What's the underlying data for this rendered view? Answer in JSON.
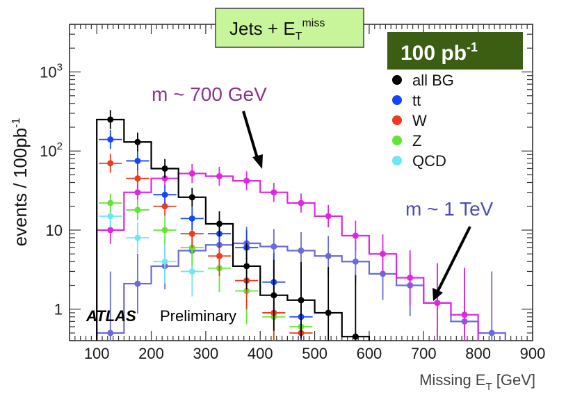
{
  "chart_data": {
    "type": "step-histogram",
    "title": "Jets + E_T^miss",
    "title_main": "Jets + E",
    "title_sub": "T",
    "title_sup": "miss",
    "luminosity_label": "100 pb",
    "luminosity_sup": "-1",
    "xlabel_main": "Missing E",
    "xlabel_sub": "T",
    "xlabel_unit": " [GeV]",
    "ylabel_main": "events / 100pb",
    "ylabel_sup": "-1",
    "xlim": [
      50,
      900
    ],
    "ylim": [
      0.4,
      4000
    ],
    "yscale": "log",
    "x_ticks": [
      100,
      200,
      300,
      400,
      500,
      600,
      700,
      800,
      900
    ],
    "x_tick_labels": [
      "100",
      "200",
      "300",
      "400",
      "500",
      "600",
      "700",
      "800",
      "900"
    ],
    "y_ticks": [
      {
        "value": 1,
        "base": "1",
        "exp": ""
      },
      {
        "value": 10,
        "base": "10",
        "exp": ""
      },
      {
        "value": 100,
        "base": "10",
        "exp": "2"
      },
      {
        "value": 1000,
        "base": "10",
        "exp": "3"
      }
    ],
    "bin_edges": [
      100,
      150,
      200,
      250,
      300,
      350,
      400,
      450,
      500,
      550,
      600,
      650,
      700,
      750,
      800,
      850
    ],
    "series": [
      {
        "name": "all BG",
        "color": "#000000",
        "kind": "hist",
        "values": [
          250,
          130,
          60,
          26,
          12,
          3.5,
          1.5,
          1.3,
          0.9,
          0.45,
          null,
          null,
          null,
          null,
          null
        ]
      },
      {
        "name": "tt",
        "color": "#1546ff",
        "kind": "points",
        "values": [
          140,
          75,
          28,
          14,
          9,
          6,
          2.2,
          0.8,
          null,
          null,
          null,
          null,
          null,
          null,
          null
        ]
      },
      {
        "name": "W",
        "color": "#ee3a1d",
        "kind": "points",
        "values": [
          70,
          45,
          20,
          9,
          4.7,
          2.3,
          0.9,
          0.5,
          null,
          null,
          null,
          null,
          null,
          null,
          null
        ]
      },
      {
        "name": "Z",
        "color": "#62e634",
        "kind": "points",
        "values": [
          22,
          18,
          10,
          6,
          3.3,
          1.7,
          0.8,
          0.6,
          null,
          null,
          null,
          null,
          null,
          null,
          null
        ]
      },
      {
        "name": "QCD",
        "color": "#6fe6f5",
        "kind": "points",
        "values": [
          15,
          8,
          4,
          3,
          null,
          null,
          null,
          null,
          null,
          null,
          null,
          null,
          null,
          null,
          null
        ]
      },
      {
        "name": "m ~ 700 GeV",
        "color": "#e026e0",
        "kind": "signal",
        "values": [
          10,
          30,
          45,
          52,
          48,
          42,
          30,
          22,
          15,
          8.5,
          5,
          2.5,
          1.2,
          0.85,
          null
        ]
      },
      {
        "name": "m ~ 1 TeV",
        "color": "#6a6ad8",
        "kind": "signal",
        "values": [
          0.5,
          2.1,
          3.5,
          5.5,
          6.5,
          6.8,
          6.2,
          5.5,
          4.7,
          4,
          2.8,
          2,
          1.2,
          0.7,
          0.5
        ]
      }
    ],
    "legend": [
      {
        "label": "all BG",
        "color": "#000000"
      },
      {
        "label": "tt",
        "color": "#1546ff"
      },
      {
        "label": "W",
        "color": "#ee3a1d"
      },
      {
        "label": "Z",
        "color": "#62e634"
      },
      {
        "label": "QCD",
        "color": "#6fe6f5"
      }
    ],
    "annotations": {
      "signal_700": "m ~ 700 GeV",
      "signal_1tev": "m ~ 1 TeV",
      "atlas": "ATLAS",
      "preliminary": "Preliminary"
    },
    "colors": {
      "title_box_fill": "#c8f59a",
      "lumi_box_fill": "#3b5e12",
      "frame": "#333333",
      "signal_700_label": "#8a338a",
      "signal_1tev_label": "#4b4bb8"
    }
  }
}
